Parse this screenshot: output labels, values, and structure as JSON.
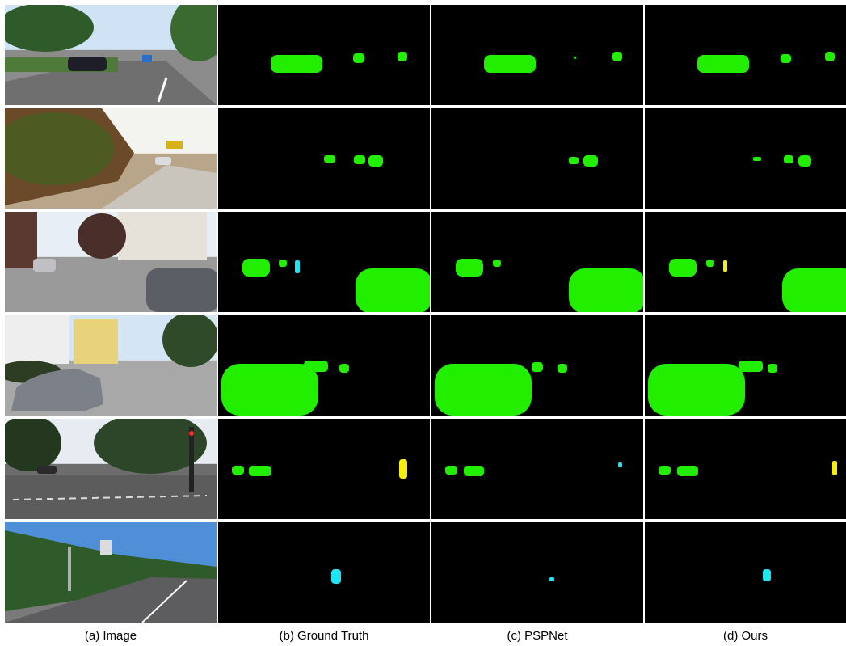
{
  "captions": {
    "image": "(a) Image",
    "ground_truth": "(b) Ground Truth",
    "pspnet": "(c) PSPNet",
    "ours": "(d) Ours"
  },
  "colors": {
    "car": "#22ee00",
    "cyclist": "#f5ef0a",
    "pedestrian": "#1ee6f0",
    "background": "#000000"
  }
}
